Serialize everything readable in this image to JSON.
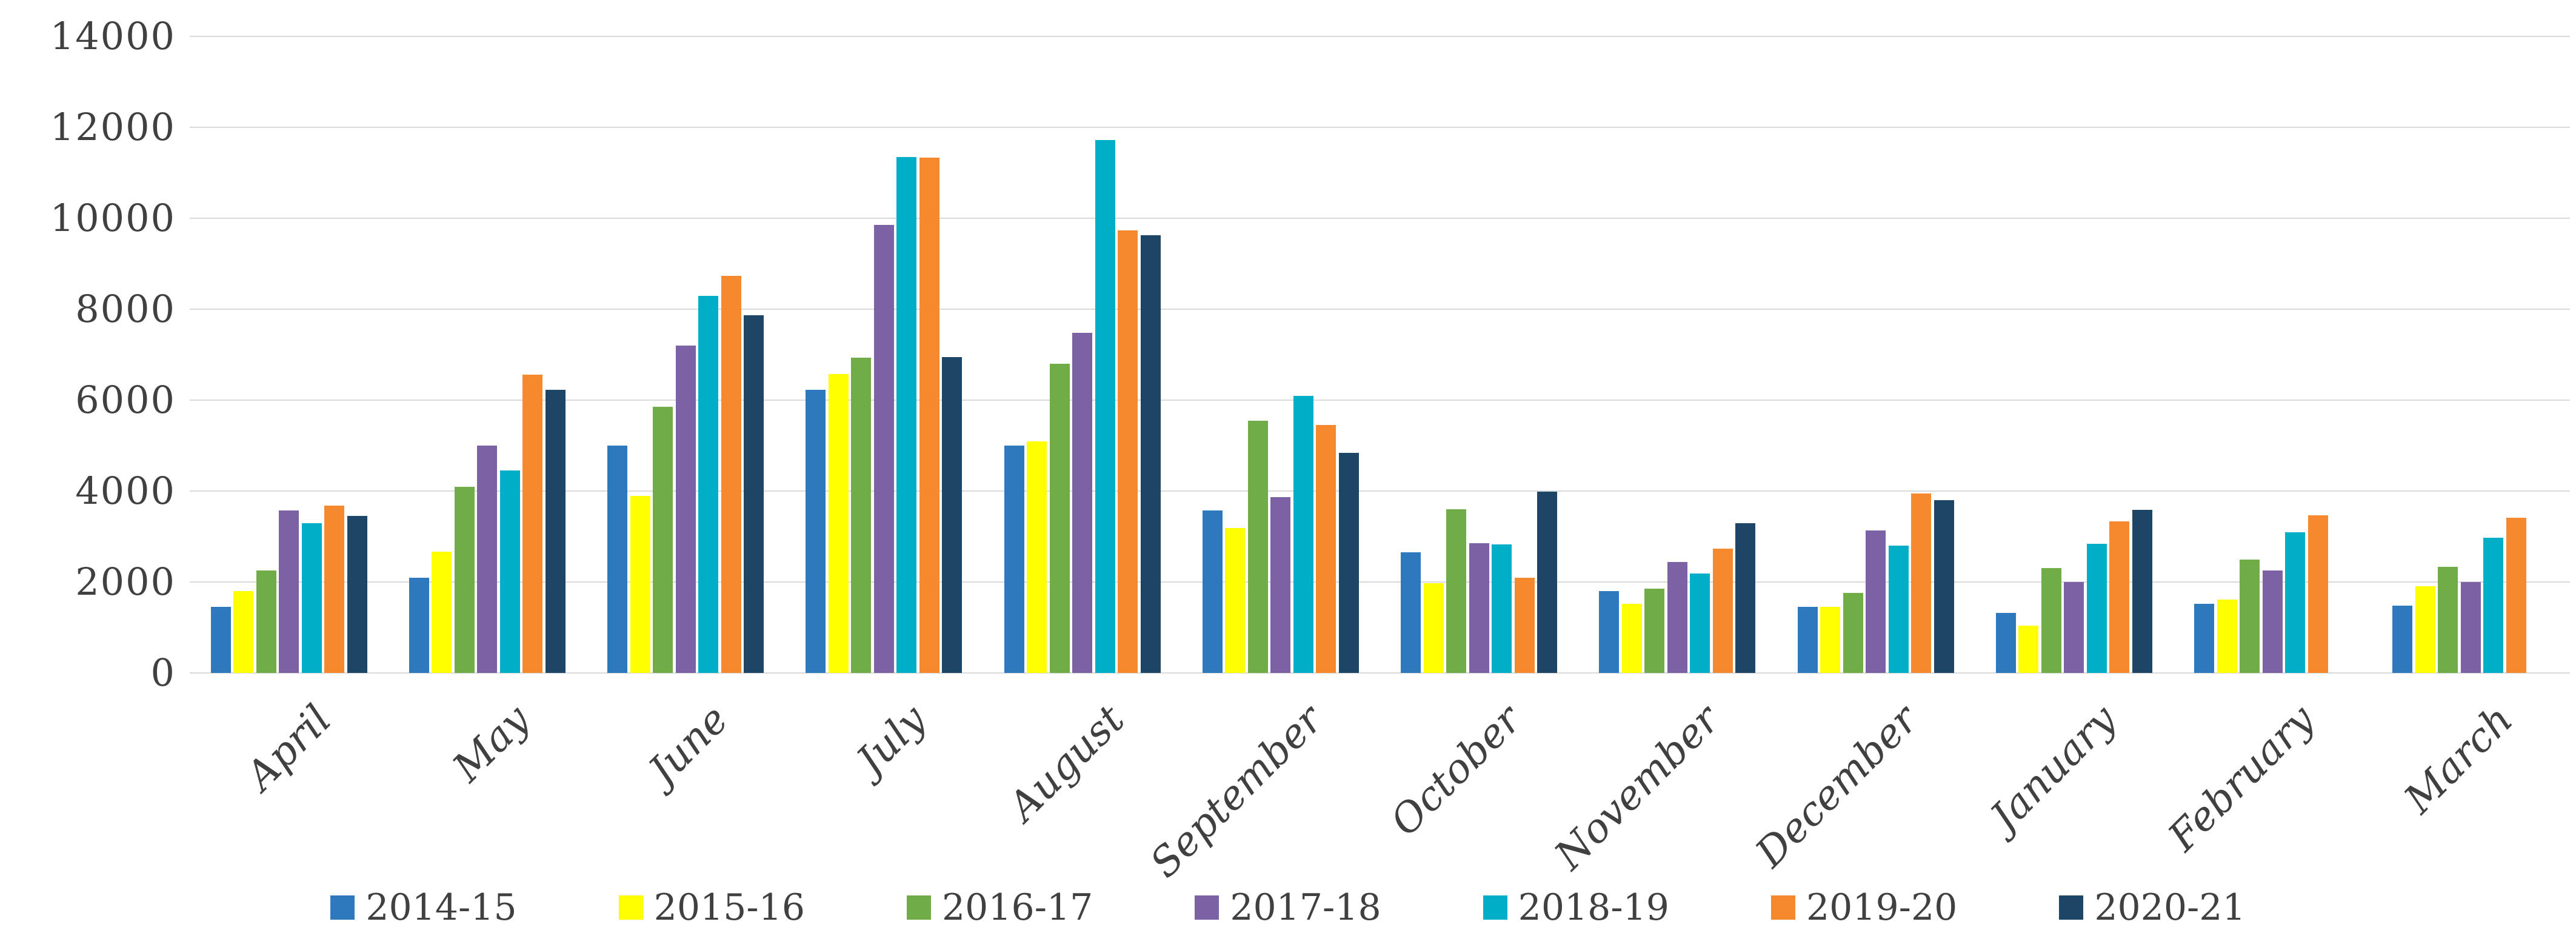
{
  "chart_data": {
    "type": "bar",
    "title": "",
    "xlabel": "",
    "ylabel": "",
    "categories": [
      "April",
      "May",
      "June",
      "July",
      "August",
      "September",
      "October",
      "November",
      "December",
      "January",
      "February",
      "March"
    ],
    "series": [
      {
        "name": "2014-15",
        "color": "#2E79BD",
        "values": [
          1450,
          2100,
          5000,
          6230,
          5000,
          3580,
          2650,
          1800,
          1460,
          1320,
          1520,
          1480
        ]
      },
      {
        "name": "2015-16",
        "color": "#FFFF00",
        "values": [
          1800,
          2670,
          3900,
          6570,
          5100,
          3190,
          1980,
          1520,
          1460,
          1040,
          1610,
          1910
        ]
      },
      {
        "name": "2016-17",
        "color": "#70AD47",
        "values": [
          2250,
          4100,
          5850,
          6940,
          6800,
          5550,
          3600,
          1860,
          1760,
          2310,
          2500,
          2340
        ]
      },
      {
        "name": "2017-18",
        "color": "#7C61A5",
        "values": [
          3580,
          5000,
          7200,
          9860,
          7480,
          3870,
          2860,
          2440,
          3140,
          2000,
          2250,
          2000
        ]
      },
      {
        "name": "2018-19",
        "color": "#00AEC8",
        "values": [
          3300,
          4450,
          8300,
          11350,
          11720,
          6100,
          2830,
          2190,
          2800,
          2840,
          3090,
          2980
        ]
      },
      {
        "name": "2019-20",
        "color": "#F6882D",
        "values": [
          3680,
          6560,
          8730,
          11330,
          9730,
          5460,
          2090,
          2730,
          3950,
          3330,
          3470,
          3420
        ]
      },
      {
        "name": "2020-21",
        "color": "#1C4566",
        "values": [
          3450,
          6230,
          7870,
          6950,
          9630,
          4840,
          3990,
          3300,
          3800,
          3590,
          null,
          null
        ]
      }
    ],
    "ylim": [
      0,
      14000
    ],
    "yticks": [
      0,
      2000,
      4000,
      6000,
      8000,
      10000,
      12000,
      14000
    ],
    "grid": "horizontal",
    "gridline_color": "#D9D9D9",
    "text_color": "#404040",
    "legend_position": "bottom",
    "x_tick_rotation": 45
  }
}
